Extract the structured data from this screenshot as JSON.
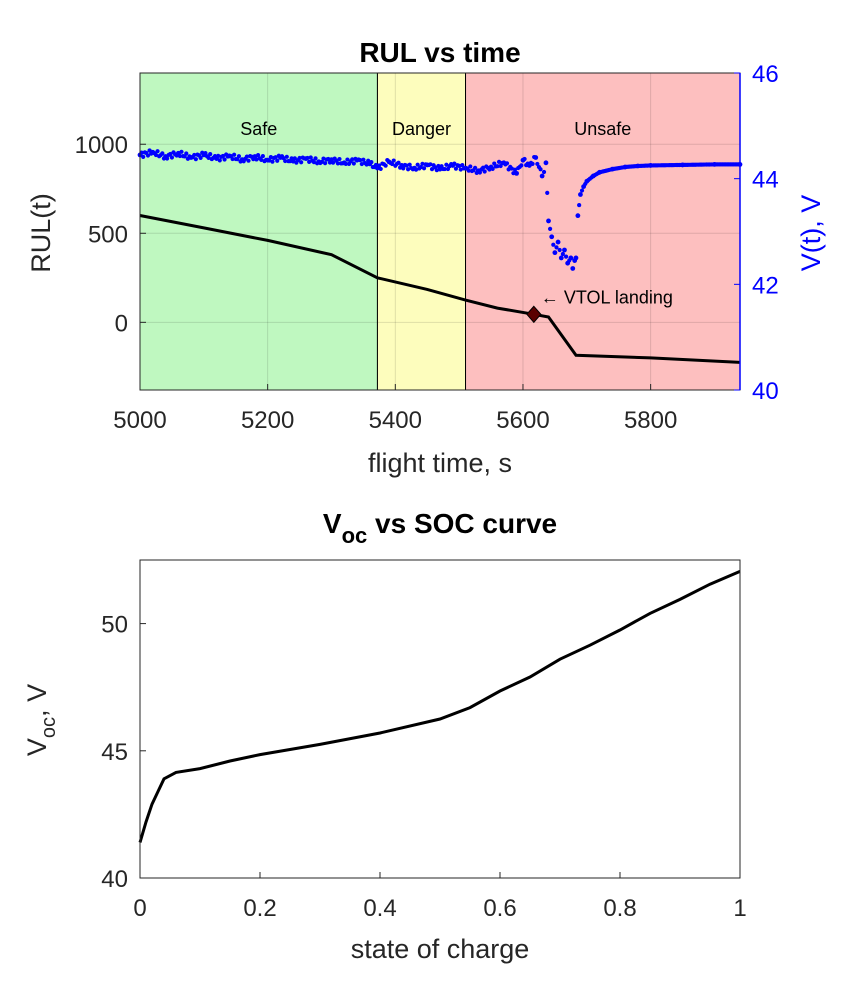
{
  "chart_data": [
    {
      "type": "line",
      "title": "RUL vs time",
      "xlabel": "flight time, s",
      "ylabel": "RUL(t)",
      "ylabel_right": "V(t), V",
      "xlim": [
        5000,
        5940
      ],
      "ylim": [
        -380,
        1400
      ],
      "ylim_right": [
        40,
        46
      ],
      "xticks": [
        "5000",
        "5200",
        "5400",
        "5600",
        "5800"
      ],
      "yticks": [
        "0",
        "500",
        "1000"
      ],
      "yticks_right": [
        "40",
        "42",
        "44",
        "46"
      ],
      "grid": true,
      "colors": {
        "rul": "#000000",
        "voltage": "#0000ff",
        "safe": "#bff8c0",
        "danger": "#fdfdbd",
        "unsafe": "#fdbfbf"
      },
      "regions": [
        {
          "label": "Safe",
          "x0": 5000,
          "x1": 5372,
          "color": "#bff8c0"
        },
        {
          "label": "Danger",
          "x0": 5372,
          "x1": 5510,
          "color": "#fdfdbd"
        },
        {
          "label": "Unsafe",
          "x0": 5510,
          "x1": 5940,
          "color": "#fdbfbf"
        }
      ],
      "series": [
        {
          "axis": "left",
          "style": "line",
          "x": [
            5000,
            5100,
            5200,
            5300,
            5372,
            5450,
            5510,
            5560,
            5617,
            5640,
            5683,
            5800,
            5940
          ],
          "y": [
            600,
            530,
            460,
            380,
            250,
            185,
            125,
            80,
            45,
            30,
            -185,
            -200,
            -225
          ]
        },
        {
          "axis": "right",
          "style": "dots",
          "x": [
            5000,
            5020,
            5040,
            5060,
            5080,
            5100,
            5120,
            5140,
            5160,
            5180,
            5200,
            5220,
            5240,
            5260,
            5280,
            5300,
            5320,
            5340,
            5360,
            5372,
            5390,
            5410,
            5430,
            5450,
            5470,
            5490,
            5510,
            5530,
            5550,
            5570,
            5590,
            5600,
            5610,
            5620,
            5630,
            5636,
            5640,
            5645,
            5650,
            5655,
            5660,
            5665,
            5670,
            5675,
            5678,
            5681,
            5683,
            5686,
            5690,
            5695,
            5700,
            5710,
            5720,
            5740,
            5760,
            5780,
            5800,
            5850,
            5900,
            5940
          ],
          "y": [
            44.45,
            44.5,
            44.42,
            44.48,
            44.4,
            44.45,
            44.38,
            44.43,
            44.36,
            44.42,
            44.35,
            44.4,
            44.33,
            44.38,
            44.32,
            44.36,
            44.3,
            44.35,
            44.28,
            44.2,
            44.32,
            44.25,
            44.2,
            44.26,
            44.18,
            44.25,
            44.2,
            44.15,
            44.22,
            44.3,
            44.1,
            44.35,
            44.25,
            44.4,
            44.05,
            44.3,
            43.2,
            42.9,
            42.6,
            42.8,
            42.5,
            42.65,
            42.4,
            42.5,
            42.3,
            42.45,
            42.5,
            43.3,
            43.7,
            43.85,
            43.95,
            44.05,
            44.12,
            44.18,
            44.22,
            44.24,
            44.25,
            44.26,
            44.27,
            44.27
          ]
        }
      ],
      "annotation": {
        "text": "← VTOL landing",
        "x": 5617,
        "y": 45
      }
    },
    {
      "type": "line",
      "title_main": "V",
      "title_sub": "oc",
      "title_rest": " vs SOC curve",
      "xlabel": "state of charge",
      "ylabel_main": "V",
      "ylabel_sub": "oc",
      "ylabel_rest": ", V",
      "xlim": [
        0,
        1
      ],
      "ylim": [
        40,
        52.5
      ],
      "xticks": [
        "0",
        "0.2",
        "0.4",
        "0.6",
        "0.8",
        "1"
      ],
      "yticks": [
        "40",
        "45",
        "50"
      ],
      "grid": false,
      "colors": {
        "line": "#000000"
      },
      "series": [
        {
          "x": [
            0,
            0.01,
            0.02,
            0.03,
            0.04,
            0.06,
            0.1,
            0.15,
            0.2,
            0.3,
            0.4,
            0.5,
            0.55,
            0.6,
            0.65,
            0.7,
            0.75,
            0.8,
            0.85,
            0.9,
            0.95,
            1.0
          ],
          "y": [
            41.4,
            42.2,
            42.9,
            43.4,
            43.9,
            44.15,
            44.3,
            44.6,
            44.85,
            45.25,
            45.7,
            46.25,
            46.7,
            47.35,
            47.9,
            48.6,
            49.15,
            49.75,
            50.4,
            50.95,
            51.55,
            52.05
          ]
        }
      ]
    }
  ]
}
